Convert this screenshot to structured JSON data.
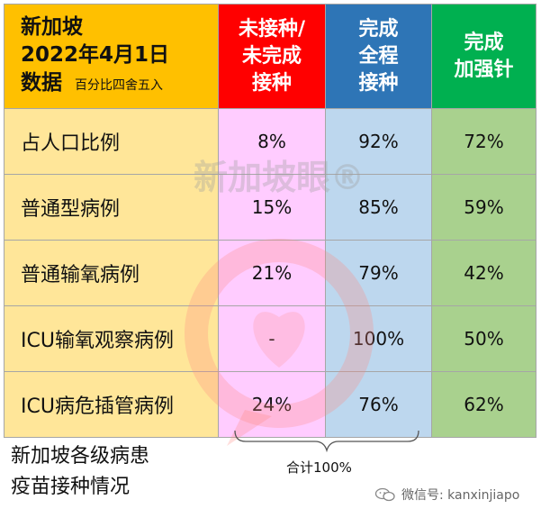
{
  "colors": {
    "header_population": "#ffc000",
    "header_unvaccinated": "#ff0000",
    "header_completed": "#2e75b6",
    "header_booster": "#00b050",
    "body_label": "#ffe699",
    "body_unvaccinated": "#ffccff",
    "body_completed": "#bdd7ee",
    "body_booster": "#a9d18e"
  },
  "chart_data": {
    "type": "table",
    "title_lines": [
      "新加坡",
      "2022年4月1日",
      "数据"
    ],
    "title_note": "百分比四舍五入",
    "columns": [
      {
        "key": "unvaccinated",
        "lines": [
          "未接种/",
          "未完成",
          "接种"
        ]
      },
      {
        "key": "completed",
        "lines": [
          "完成",
          "全程",
          "接种"
        ]
      },
      {
        "key": "booster",
        "lines": [
          "完成",
          "加强针"
        ]
      }
    ],
    "rows": [
      {
        "label": "占人口比例",
        "values": [
          "8%",
          "92%",
          "72%"
        ]
      },
      {
        "label": "普通型病例",
        "values": [
          "15%",
          "85%",
          "59%"
        ]
      },
      {
        "label": "普通输氧病例",
        "values": [
          "21%",
          "79%",
          "42%"
        ]
      },
      {
        "label": "ICU输氧观察病例",
        "values": [
          "-",
          "100%",
          "50%"
        ]
      },
      {
        "label": "ICU病危插管病例",
        "values": [
          "24%",
          "76%",
          "62%"
        ]
      }
    ],
    "caption_lines": [
      "新加坡各级病患",
      "疫苗接种情况"
    ],
    "sum_note": "合计100%"
  },
  "watermark": {
    "text": "新加坡眼®"
  },
  "footer": {
    "wechat_id": "微信号: kanxinjiapo",
    "icon": "wechat-icon"
  }
}
